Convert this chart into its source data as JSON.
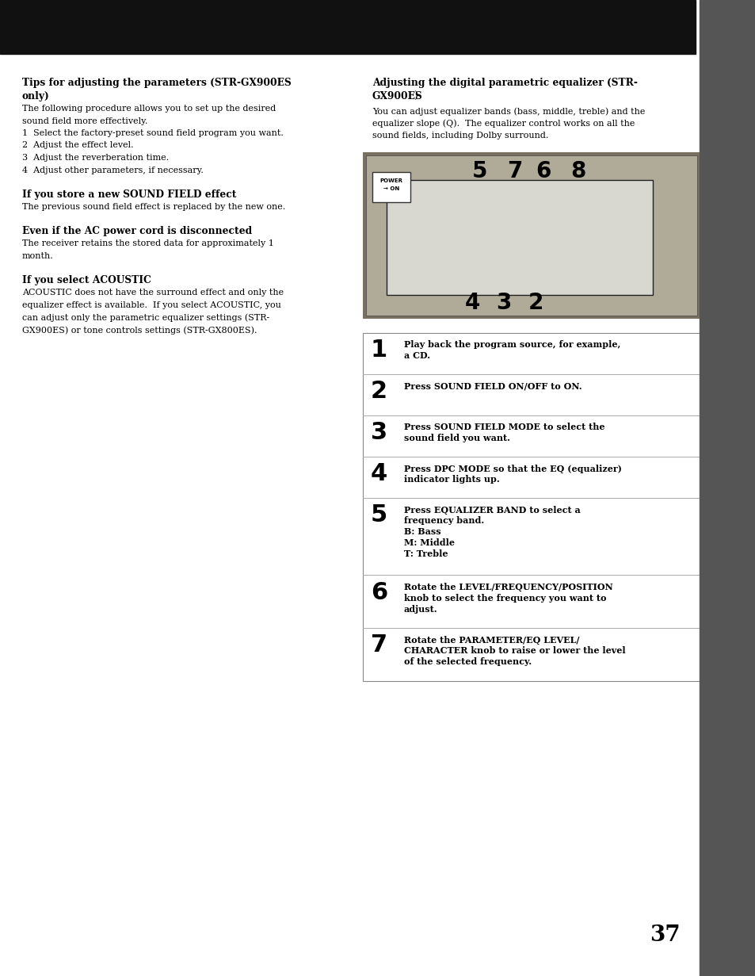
{
  "page_number": "37",
  "header_color": "#111111",
  "bg_color": "#ffffff",
  "sections_left": [
    {
      "heading": "Tips for adjusting the parameters (STR-GX900ES\nonly)",
      "body_lines": [
        {
          "text": "The following procedure allows you to set up the desired",
          "bold": false
        },
        {
          "text": "sound field more effectively.",
          "bold": false
        },
        {
          "text": "1  Select the factory-preset sound field program you want.",
          "bold_num": true
        },
        {
          "text": "2  Adjust the effect level.",
          "bold_num": true
        },
        {
          "text": "3  Adjust the reverberation time.",
          "bold_num": true
        },
        {
          "text": "4  Adjust other parameters, if necessary.",
          "bold_num": true
        }
      ]
    },
    {
      "heading": "If you store a new SOUND FIELD effect",
      "body_lines": [
        {
          "text": "The previous sound field effect is replaced by the new one.",
          "bold": false
        }
      ]
    },
    {
      "heading": "Even if the AC power cord is disconnected",
      "body_lines": [
        {
          "text": "The receiver retains the stored data for approximately 1",
          "bold": false
        },
        {
          "text": "month.",
          "bold": false
        }
      ]
    },
    {
      "heading": "If you select ACOUSTIC",
      "body_lines": [
        {
          "text": "ACOUSTIC does not have the surround effect and only the",
          "bold": false
        },
        {
          "text": "equalizer effect is available.  If you select ACOUSTIC, you",
          "bold": false
        },
        {
          "text": "can adjust only the parametric equalizer settings (STR-",
          "bold": false
        },
        {
          "text": "GX900ES) or tone controls settings (STR-GX800ES).",
          "bold": false
        }
      ]
    }
  ],
  "right_heading_line1": "Adjusting the digital parametric equalizer (STR-",
  "right_heading_line2": "GX900ES",
  "right_heading_line2_suffix": ")",
  "right_body_lines": [
    "You can adjust equalizer bands (bass, middle, treble) and the",
    "equalizer slope (Q).  The equalizer control works on all the",
    "sound fields, including Dolby surround."
  ],
  "steps": [
    {
      "num": "1",
      "lines": [
        {
          "text": "Play back the program source, for example,",
          "bold": true
        },
        {
          "text": "a CD.",
          "bold": true
        }
      ]
    },
    {
      "num": "2",
      "lines": [
        {
          "text": "Press SOUND FIELD ON/OFF to ON.",
          "bold": true
        }
      ]
    },
    {
      "num": "3",
      "lines": [
        {
          "text": "Press SOUND FIELD MODE to select the",
          "bold": true
        },
        {
          "text": "sound field you want.",
          "bold": true
        }
      ]
    },
    {
      "num": "4",
      "lines": [
        {
          "text": "Press DPC MODE so that the EQ (equalizer)",
          "bold": true
        },
        {
          "text": "indicator lights up.",
          "bold": true
        }
      ]
    },
    {
      "num": "5",
      "lines": [
        {
          "text": "Press EQUALIZER BAND to select a",
          "bold": true
        },
        {
          "text": "frequency band.",
          "bold": true
        },
        {
          "text": "B: Bass",
          "bold": true
        },
        {
          "text": "M: Middle",
          "bold": true
        },
        {
          "text": "T: Treble",
          "bold": true
        }
      ]
    },
    {
      "num": "6",
      "lines": [
        {
          "text": "Rotate the LEVEL/FREQUENCY/POSITION",
          "bold": true
        },
        {
          "text": "knob to select the frequency you want to",
          "bold": true
        },
        {
          "text": "adjust.",
          "bold": true
        }
      ]
    },
    {
      "num": "7",
      "lines": [
        {
          "text": "Rotate the PARAMETER/EQ LEVEL/",
          "bold": true
        },
        {
          "text": "CHARACTER knob to raise or lower the level",
          "bold": true
        },
        {
          "text": "of the selected frequency.",
          "bold": true
        }
      ]
    }
  ]
}
